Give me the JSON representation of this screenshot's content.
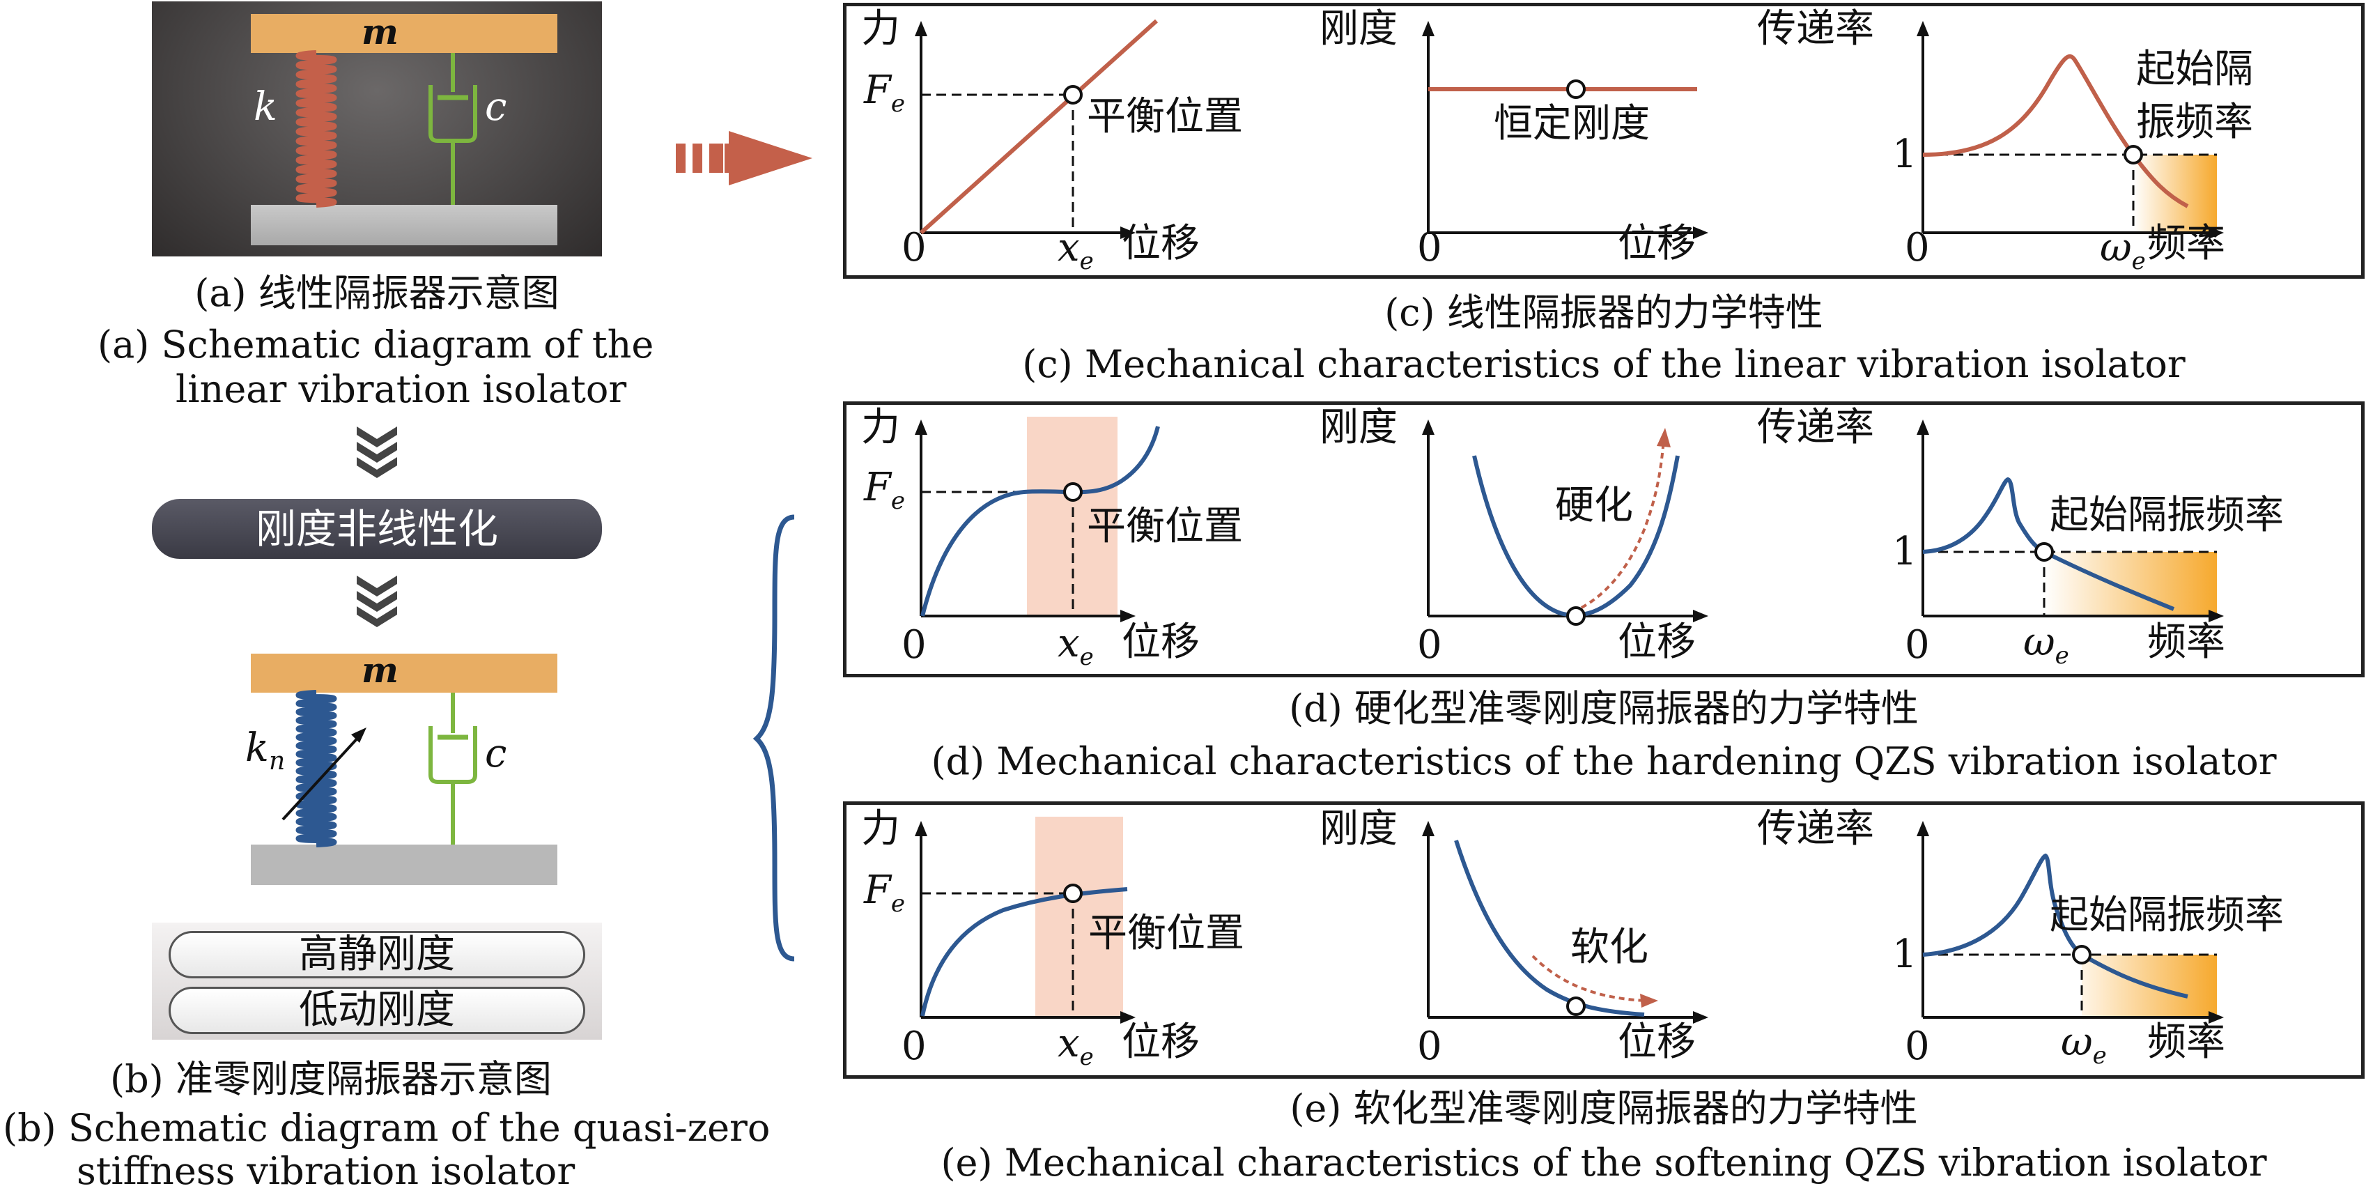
{
  "colors": {
    "linear_curve": "#c0604a",
    "qzs_curve": "#2d5891",
    "mass_fill": "#e8ad63",
    "ground_fill": "#b8b8b8",
    "damper_green": "#7db63f",
    "linear_spring": "#c4604a",
    "qzs_spring": "#2d5891",
    "highlight_region": "#f9d6c6",
    "isolation_gradient_start": "#f6a92e",
    "isolation_gradient_end": "#ffffff",
    "dark_pill": "#45454f"
  },
  "left": {
    "linear_mass_label": "m",
    "linear_spring_label": "k",
    "linear_damper_label": "c",
    "caption_a_zh": "(a)  线性隔振器示意图",
    "caption_a_en_line1": "(a)  Schematic diagram of the",
    "caption_a_en_line2": "linear vibration isolator",
    "chevron_icon": "double-chevron-down-icon",
    "nonlinear_pill": "刚度非线性化",
    "qzs_mass_label": "m",
    "qzs_spring_label": "k",
    "qzs_spring_subscript": "n",
    "qzs_damper_label": "c",
    "pill_high_static": "高静刚度",
    "pill_low_dynamic": "低动刚度",
    "caption_b_zh": "(b)  准零刚度隔振器示意图",
    "caption_b_en_line1": "(b)  Schematic diagram of the quasi-zero",
    "caption_b_en_line2": "stiffness vibration isolator"
  },
  "panels": [
    {
      "id": "c",
      "caption_zh": "(c)  线性隔振器的力学特性",
      "caption_en": "(c)  Mechanical characteristics of the linear vibration isolator",
      "force_plot": {
        "y_label": "力",
        "x_label": "位移",
        "origin": "0",
        "fe_label": "F",
        "fe_sub": "e",
        "xe_label": "x",
        "xe_sub": "e",
        "point_label": "平衡位置"
      },
      "stiffness_plot": {
        "y_label": "刚度",
        "x_label": "位移",
        "origin": "0",
        "note": "恒定刚度"
      },
      "transmissibility_plot": {
        "y_label": "传递率",
        "x_label": "频率",
        "origin": "0",
        "one_label": "1",
        "omega_label": "ω",
        "omega_sub": "e",
        "note_line1": "起始隔",
        "note_line2": "振频率"
      }
    },
    {
      "id": "d",
      "caption_zh": "(d)  硬化型准零刚度隔振器的力学特性",
      "caption_en": "(d)  Mechanical characteristics of the hardening QZS vibration isolator",
      "force_plot": {
        "y_label": "力",
        "x_label": "位移",
        "origin": "0",
        "fe_label": "F",
        "fe_sub": "e",
        "xe_label": "x",
        "xe_sub": "e",
        "point_label": "平衡位置"
      },
      "stiffness_plot": {
        "y_label": "刚度",
        "x_label": "位移",
        "origin": "0",
        "note": "硬化"
      },
      "transmissibility_plot": {
        "y_label": "传递率",
        "x_label": "频率",
        "origin": "0",
        "one_label": "1",
        "omega_label": "ω",
        "omega_sub": "e",
        "note": "起始隔振频率"
      }
    },
    {
      "id": "e",
      "caption_zh": "(e)  软化型准零刚度隔振器的力学特性",
      "caption_en": "(e)  Mechanical characteristics of the softening QZS vibration isolator",
      "force_plot": {
        "y_label": "力",
        "x_label": "位移",
        "origin": "0",
        "fe_label": "F",
        "fe_sub": "e",
        "xe_label": "x",
        "xe_sub": "e",
        "point_label": "平衡位置"
      },
      "stiffness_plot": {
        "y_label": "刚度",
        "x_label": "位移",
        "origin": "0",
        "note": "软化"
      },
      "transmissibility_plot": {
        "y_label": "传递率",
        "x_label": "频率",
        "origin": "0",
        "one_label": "1",
        "omega_label": "ω",
        "omega_sub": "e",
        "note": "起始隔振频率"
      }
    }
  ]
}
